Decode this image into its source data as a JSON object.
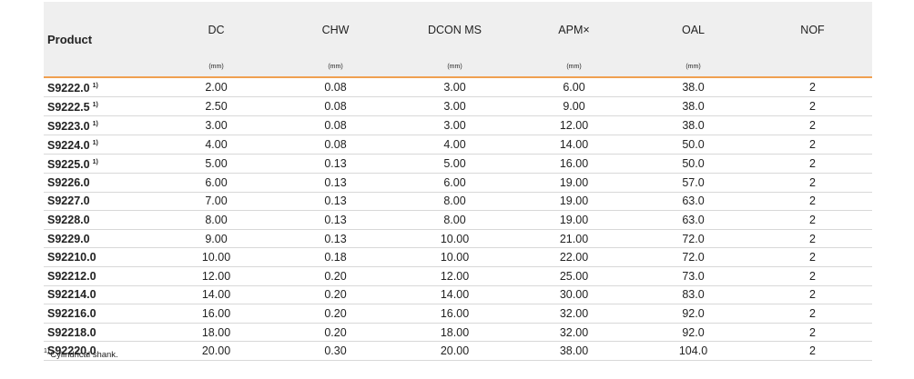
{
  "table": {
    "product_header": "Product",
    "columns": [
      {
        "label": "DC",
        "unit": "(mm)"
      },
      {
        "label": "CHW",
        "unit": "(mm)"
      },
      {
        "label": "DCON MS",
        "unit": "(mm)"
      },
      {
        "label": "APM×",
        "unit": "(mm)"
      },
      {
        "label": "OAL",
        "unit": "(mm)"
      },
      {
        "label": "NOF"
      }
    ],
    "rows": [
      {
        "product": "S9222.0",
        "note": "1)",
        "cells": [
          "2.00",
          "0.08",
          "3.00",
          "6.00",
          "38.0",
          "2"
        ]
      },
      {
        "product": "S9222.5",
        "note": "1)",
        "cells": [
          "2.50",
          "0.08",
          "3.00",
          "9.00",
          "38.0",
          "2"
        ]
      },
      {
        "product": "S9223.0",
        "note": "1)",
        "cells": [
          "3.00",
          "0.08",
          "3.00",
          "12.00",
          "38.0",
          "2"
        ]
      },
      {
        "product": "S9224.0",
        "note": "1)",
        "cells": [
          "4.00",
          "0.08",
          "4.00",
          "14.00",
          "50.0",
          "2"
        ]
      },
      {
        "product": "S9225.0",
        "note": "1)",
        "cells": [
          "5.00",
          "0.13",
          "5.00",
          "16.00",
          "50.0",
          "2"
        ]
      },
      {
        "product": "S9226.0",
        "cells": [
          "6.00",
          "0.13",
          "6.00",
          "19.00",
          "57.0",
          "2"
        ]
      },
      {
        "product": "S9227.0",
        "cells": [
          "7.00",
          "0.13",
          "8.00",
          "19.00",
          "63.0",
          "2"
        ]
      },
      {
        "product": "S9228.0",
        "cells": [
          "8.00",
          "0.13",
          "8.00",
          "19.00",
          "63.0",
          "2"
        ]
      },
      {
        "product": "S9229.0",
        "cells": [
          "9.00",
          "0.13",
          "10.00",
          "21.00",
          "72.0",
          "2"
        ]
      },
      {
        "product": "S92210.0",
        "cells": [
          "10.00",
          "0.18",
          "10.00",
          "22.00",
          "72.0",
          "2"
        ]
      },
      {
        "product": "S92212.0",
        "cells": [
          "12.00",
          "0.20",
          "12.00",
          "25.00",
          "73.0",
          "2"
        ]
      },
      {
        "product": "S92214.0",
        "cells": [
          "14.00",
          "0.20",
          "14.00",
          "30.00",
          "83.0",
          "2"
        ]
      },
      {
        "product": "S92216.0",
        "cells": [
          "16.00",
          "0.20",
          "16.00",
          "32.00",
          "92.0",
          "2"
        ]
      },
      {
        "product": "S92218.0",
        "cells": [
          "18.00",
          "0.20",
          "18.00",
          "32.00",
          "92.0",
          "2"
        ]
      },
      {
        "product": "S92220.0",
        "cells": [
          "20.00",
          "0.30",
          "20.00",
          "38.00",
          "104.0",
          "2"
        ]
      }
    ]
  },
  "footnote": {
    "mark": "1)",
    "text": "Cylindrical shank."
  }
}
